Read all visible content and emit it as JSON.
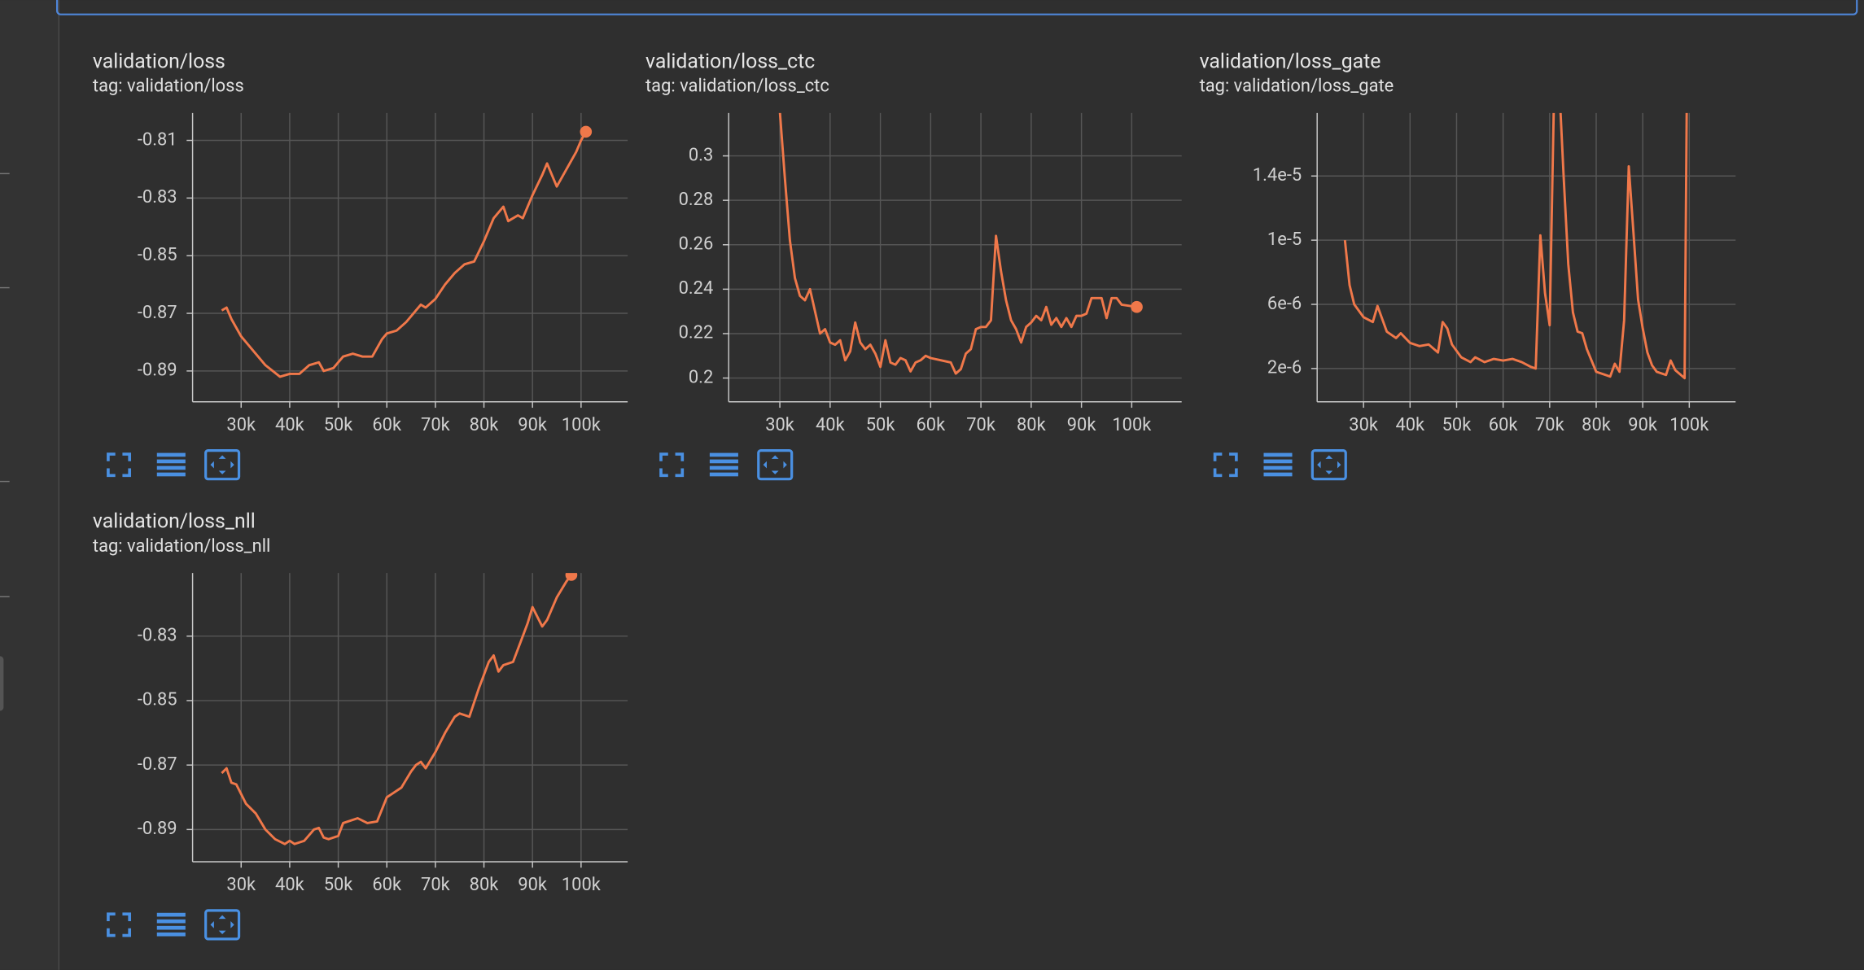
{
  "chart_data": [
    {
      "type": "line",
      "title": "validation/loss",
      "subtitle": "tag: validation/loss",
      "color": "#f0784a",
      "xlim": [
        20000,
        109600
      ],
      "ylim": [
        -0.9007,
        -0.8005
      ],
      "xticks": [
        {
          "value": 30000,
          "label": "30k"
        },
        {
          "value": 40000,
          "label": "40k"
        },
        {
          "value": 50000,
          "label": "50k"
        },
        {
          "value": 60000,
          "label": "60k"
        },
        {
          "value": 70000,
          "label": "70k"
        },
        {
          "value": 80000,
          "label": "80k"
        },
        {
          "value": 90000,
          "label": "90k"
        },
        {
          "value": 100000,
          "label": "100k"
        }
      ],
      "yticks": [
        -0.81,
        -0.83,
        -0.85,
        -0.87,
        -0.89
      ],
      "grid": true,
      "x": [
        26000,
        27000,
        28000,
        30000,
        32000,
        35000,
        38000,
        40000,
        42000,
        44000,
        46000,
        47000,
        49000,
        51000,
        53000,
        55000,
        57000,
        59000,
        60000,
        62000,
        64000,
        66000,
        67000,
        68000,
        70000,
        72000,
        74000,
        76000,
        78000,
        80000,
        82000,
        84000,
        85000,
        87000,
        88000,
        90000,
        92000,
        93000,
        94000,
        95000,
        97000,
        99000,
        100000,
        101000
      ],
      "values": [
        -0.869,
        -0.868,
        -0.872,
        -0.878,
        -0.882,
        -0.888,
        -0.892,
        -0.891,
        -0.891,
        -0.888,
        -0.887,
        -0.89,
        -0.889,
        -0.885,
        -0.884,
        -0.885,
        -0.885,
        -0.879,
        -0.877,
        -0.876,
        -0.873,
        -0.869,
        -0.867,
        -0.868,
        -0.865,
        -0.86,
        -0.856,
        -0.853,
        -0.852,
        -0.845,
        -0.837,
        -0.833,
        -0.838,
        -0.836,
        -0.837,
        -0.829,
        -0.822,
        -0.818,
        -0.822,
        -0.826,
        -0.82,
        -0.814,
        -0.81,
        -0.807
      ]
    },
    {
      "type": "line",
      "title": "validation/loss_ctc",
      "subtitle": "tag: validation/loss_ctc",
      "color": "#f0784a",
      "xlim": [
        19830,
        109930
      ],
      "ylim": [
        0.1893,
        0.3193
      ],
      "xticks": [
        {
          "value": 30000,
          "label": "30k"
        },
        {
          "value": 40000,
          "label": "40k"
        },
        {
          "value": 50000,
          "label": "50k"
        },
        {
          "value": 60000,
          "label": "60k"
        },
        {
          "value": 70000,
          "label": "70k"
        },
        {
          "value": 80000,
          "label": "80k"
        },
        {
          "value": 90000,
          "label": "90k"
        },
        {
          "value": 100000,
          "label": "100k"
        }
      ],
      "yticks": [
        0.2,
        0.22,
        0.24,
        0.26,
        0.28,
        0.3
      ],
      "grid": true,
      "x": [
        30000,
        31000,
        32000,
        33000,
        34000,
        35000,
        36000,
        37000,
        38000,
        39000,
        40000,
        41000,
        42000,
        43000,
        44000,
        45000,
        46000,
        47000,
        48000,
        49000,
        50000,
        51000,
        52000,
        53000,
        54000,
        55000,
        56000,
        57000,
        58000,
        59000,
        60000,
        62000,
        64000,
        65000,
        66000,
        67000,
        68000,
        69000,
        70000,
        71000,
        72000,
        73000,
        74000,
        75000,
        76000,
        77000,
        78000,
        79000,
        80000,
        81000,
        82000,
        83000,
        84000,
        85000,
        86000,
        87000,
        88000,
        89000,
        90000,
        91000,
        92000,
        93000,
        94000,
        95000,
        96000,
        97000,
        98000,
        101000
      ],
      "values": [
        0.32,
        0.29,
        0.262,
        0.245,
        0.237,
        0.235,
        0.24,
        0.23,
        0.22,
        0.222,
        0.216,
        0.215,
        0.217,
        0.208,
        0.212,
        0.225,
        0.216,
        0.213,
        0.215,
        0.211,
        0.205,
        0.217,
        0.207,
        0.206,
        0.209,
        0.208,
        0.203,
        0.207,
        0.208,
        0.21,
        0.209,
        0.208,
        0.207,
        0.202,
        0.204,
        0.211,
        0.213,
        0.222,
        0.223,
        0.223,
        0.226,
        0.264,
        0.248,
        0.235,
        0.226,
        0.222,
        0.216,
        0.223,
        0.225,
        0.228,
        0.226,
        0.232,
        0.224,
        0.227,
        0.223,
        0.227,
        0.223,
        0.228,
        0.228,
        0.229,
        0.236,
        0.236,
        0.236,
        0.227,
        0.236,
        0.236,
        0.233,
        0.232
      ]
    },
    {
      "type": "line",
      "title": "validation/loss_gate",
      "subtitle": "tag: validation/loss_gate",
      "color": "#f0784a",
      "xlim": [
        20036,
        109960
      ],
      "ylim": [
        -7.4e-08,
        1.7926e-05
      ],
      "xticks": [
        {
          "value": 30000,
          "label": "30k"
        },
        {
          "value": 40000,
          "label": "40k"
        },
        {
          "value": 50000,
          "label": "50k"
        },
        {
          "value": 60000,
          "label": "60k"
        },
        {
          "value": 70000,
          "label": "70k"
        },
        {
          "value": 80000,
          "label": "80k"
        },
        {
          "value": 90000,
          "label": "90k"
        },
        {
          "value": 100000,
          "label": "100k"
        }
      ],
      "yticks": [
        {
          "value": 2e-06,
          "label": "2e-6"
        },
        {
          "value": 6e-06,
          "label": "6e-6"
        },
        {
          "value": 1e-05,
          "label": "1e-5"
        },
        {
          "value": 1.4e-05,
          "label": "1.4e-5"
        }
      ],
      "grid": true,
      "x": [
        26000,
        27000,
        28000,
        30000,
        32000,
        33000,
        35000,
        37000,
        38000,
        40000,
        42000,
        44000,
        46000,
        47000,
        48000,
        49000,
        51000,
        53000,
        54000,
        56000,
        58000,
        60000,
        62000,
        64000,
        66000,
        67000,
        68000,
        69000,
        70000,
        71000,
        72000,
        73000,
        74000,
        75000,
        76000,
        77000,
        78000,
        79000,
        80000,
        82000,
        83000,
        84000,
        85000,
        86000,
        87000,
        88000,
        89000,
        90000,
        91000,
        92000,
        93000,
        95000,
        96000,
        97000,
        99000,
        99500
      ],
      "values": [
        1e-05,
        7.2e-06,
        6e-06,
        5.2e-06,
        4.9e-06,
        5.9e-06,
        4.3e-06,
        3.9e-06,
        4.2e-06,
        3.6e-06,
        3.4e-06,
        3.5e-06,
        3e-06,
        4.9e-06,
        4.5e-06,
        3.5e-06,
        2.7e-06,
        2.4e-06,
        2.7e-06,
        2.4e-06,
        2.6e-06,
        2.5e-06,
        2.6e-06,
        2.4e-06,
        2.1e-06,
        2e-06,
        1.03e-05,
        6.7e-06,
        4.7e-06,
        2e-05,
        2e-05,
        1.4e-05,
        8.5e-06,
        5.5e-06,
        4.3e-06,
        4.2e-06,
        3.2e-06,
        2.5e-06,
        1.8e-06,
        1.6e-06,
        1.5e-06,
        2.3e-06,
        1.8e-06,
        5e-06,
        1.46e-05,
        1.05e-05,
        6.3e-06,
        4.5e-06,
        3e-06,
        2.2e-06,
        1.8e-06,
        1.6e-06,
        2.5e-06,
        1.9e-06,
        1.4e-06,
        2e-05
      ]
    },
    {
      "type": "line",
      "title": "validation/loss_nll",
      "subtitle": "tag: validation/loss_nll",
      "color": "#f0784a",
      "xlim": [
        20000,
        109600
      ],
      "ylim": [
        -0.9,
        -0.8104
      ],
      "xticks": [
        {
          "value": 30000,
          "label": "30k"
        },
        {
          "value": 40000,
          "label": "40k"
        },
        {
          "value": 50000,
          "label": "50k"
        },
        {
          "value": 60000,
          "label": "60k"
        },
        {
          "value": 70000,
          "label": "70k"
        },
        {
          "value": 80000,
          "label": "80k"
        },
        {
          "value": 90000,
          "label": "90k"
        },
        {
          "value": 100000,
          "label": "100k"
        }
      ],
      "yticks": [
        -0.83,
        -0.85,
        -0.87,
        -0.89
      ],
      "grid": true,
      "x": [
        26000,
        27000,
        28000,
        29000,
        31000,
        33000,
        35000,
        37000,
        39000,
        40000,
        41000,
        43000,
        45000,
        46000,
        47000,
        48000,
        50000,
        51000,
        53000,
        54000,
        56000,
        58000,
        60000,
        61000,
        63000,
        65000,
        66000,
        67000,
        68000,
        70000,
        72000,
        74000,
        75000,
        77000,
        79000,
        81000,
        82000,
        83000,
        84000,
        86000,
        88000,
        89000,
        90000,
        91000,
        92000,
        93000,
        95000,
        97000,
        98000
      ],
      "values": [
        -0.8725,
        -0.871,
        -0.8755,
        -0.876,
        -0.882,
        -0.885,
        -0.89,
        -0.893,
        -0.8945,
        -0.8935,
        -0.8945,
        -0.8935,
        -0.89,
        -0.8895,
        -0.8925,
        -0.893,
        -0.892,
        -0.888,
        -0.887,
        -0.8865,
        -0.888,
        -0.8875,
        -0.88,
        -0.879,
        -0.877,
        -0.872,
        -0.87,
        -0.869,
        -0.871,
        -0.866,
        -0.86,
        -0.855,
        -0.854,
        -0.855,
        -0.846,
        -0.838,
        -0.836,
        -0.841,
        -0.839,
        -0.838,
        -0.83,
        -0.826,
        -0.821,
        -0.824,
        -0.827,
        -0.825,
        -0.818,
        -0.813,
        -0.811
      ]
    }
  ]
}
